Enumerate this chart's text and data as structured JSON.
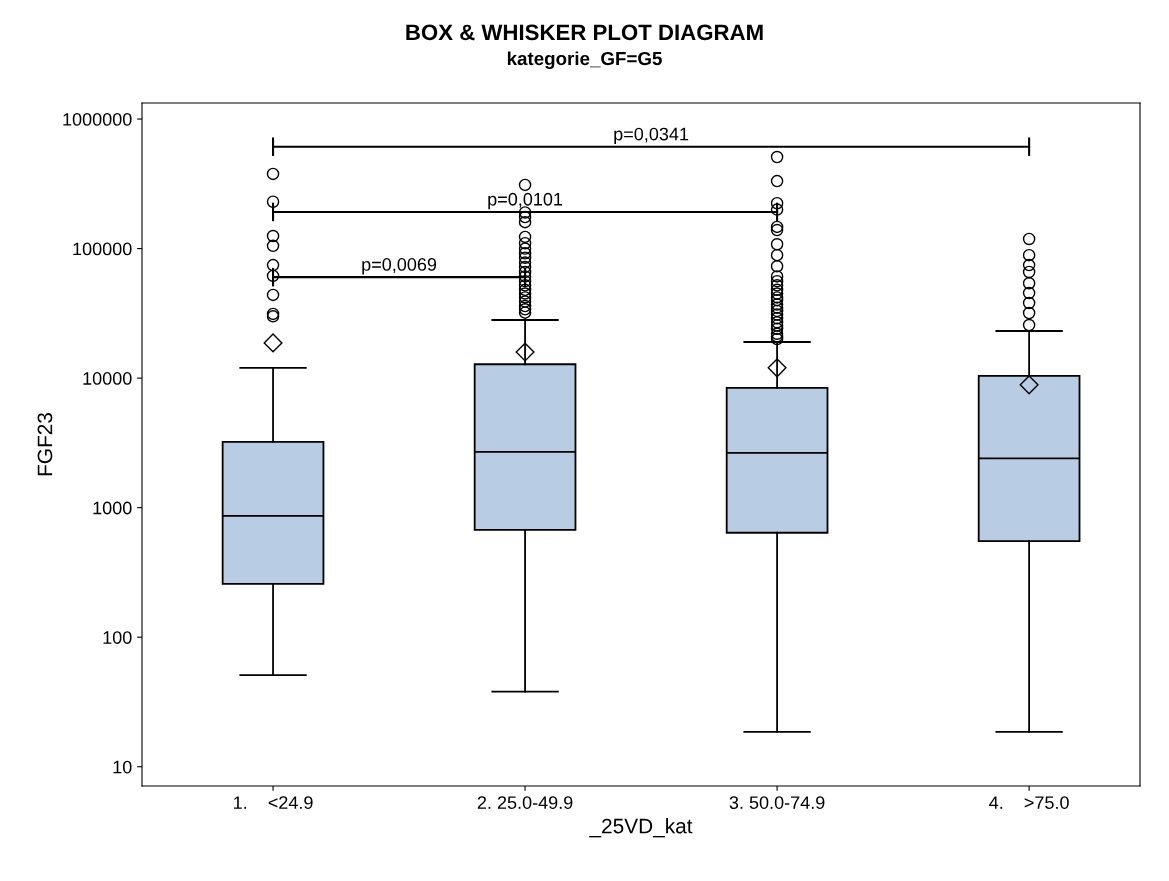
{
  "chart_data": {
    "type": "box",
    "title": "BOX & WHISKER PLOT DIAGRAM",
    "subtitle": "kategorie_GF=G5",
    "xlabel": "_25VD_kat",
    "ylabel": "FGF23",
    "categories": [
      "1.    <24.9",
      "2. 25.0-49.9",
      "3. 50.0-74.9",
      "4.    >75.0"
    ],
    "color": "#b8cce4",
    "log": "y",
    "ylim": [
      7.1,
      1330000
    ],
    "yticks": [
      10,
      100,
      1000,
      10000,
      100000,
      1000000
    ],
    "grid": false,
    "legend": false,
    "boxes": [
      {
        "low": 51,
        "q1": 258,
        "median": 865,
        "q3": 3220,
        "high": 12000,
        "mean": 18700,
        "outliers": [
          377000,
          230000,
          125000,
          105000,
          74600,
          61500,
          43900,
          31300,
          30000
        ]
      },
      {
        "low": 38,
        "q1": 674,
        "median": 2700,
        "q3": 12800,
        "high": 28100,
        "mean": 15900,
        "outliers": [
          310000,
          190000,
          175000,
          160000,
          123000,
          110000,
          100000,
          92000,
          85000,
          78000,
          72000,
          66000,
          61000,
          56000,
          52000,
          48000,
          45000,
          42000,
          39000,
          36000,
          34000,
          32000
        ]
      },
      {
        "low": 18.6,
        "q1": 640,
        "median": 2650,
        "q3": 8400,
        "high": 19000,
        "mean": 12000,
        "outliers": [
          509000,
          332000,
          224000,
          200000,
          147000,
          139000,
          108000,
          89000,
          73000,
          61000,
          56000,
          52000,
          48000,
          45000,
          42000,
          40000,
          37000,
          35000,
          33000,
          31000,
          29000,
          27000,
          25500,
          24000,
          22000,
          21000,
          20000
        ]
      },
      {
        "low": 18.6,
        "q1": 552,
        "median": 2400,
        "q3": 10400,
        "high": 23100,
        "mean": 8870,
        "outliers": [
          118600,
          89000,
          74600,
          66000,
          54000,
          45400,
          38000,
          31800,
          25700
        ]
      }
    ],
    "annotations": [
      "p=0,0069",
      "p=0,0101",
      "p=0,0341"
    ]
  }
}
